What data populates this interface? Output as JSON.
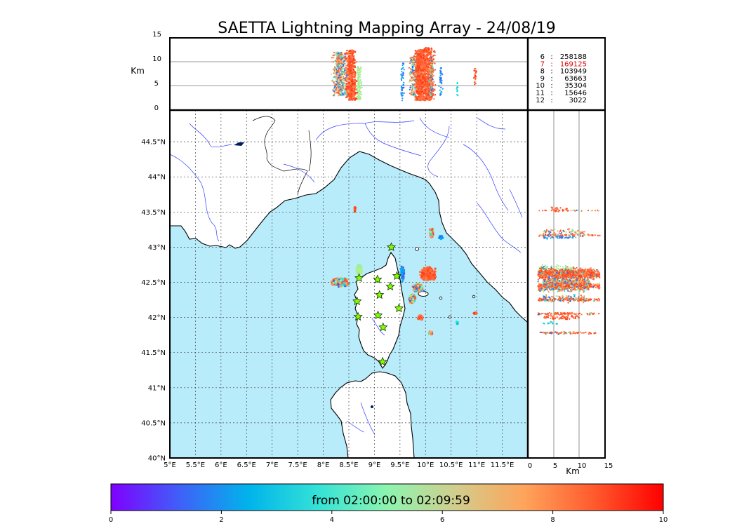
{
  "title": "SAETTA Lightning Mapping Array - 24/08/19",
  "colorbar": {
    "label": "from 02:00:00 to 02:09:59",
    "ticks": [
      "0",
      "2",
      "4",
      "6",
      "8",
      "10"
    ],
    "min": 0,
    "max": 10,
    "colors": [
      "#7f00ff",
      "#3f60f8",
      "#00b4eb",
      "#34e2d6",
      "#8cf5b0",
      "#d2cd8c",
      "#ffa35a",
      "#ff5a2d",
      "#ff0000"
    ]
  },
  "altitude_panel": {
    "ylabel": "Km",
    "yticks": [
      "15",
      "10",
      "5",
      "0"
    ],
    "ylim": [
      0,
      15
    ]
  },
  "side_panel": {
    "xlabel": "Km",
    "xticks": [
      "0",
      "5",
      "10",
      "15"
    ],
    "xlim": [
      0,
      15
    ]
  },
  "map": {
    "lon_range": [
      5,
      12
    ],
    "lat_range": [
      40,
      44.95
    ],
    "lon_ticks": [
      "5°E",
      "5.5°E",
      "6°E",
      "6.5°E",
      "7°E",
      "7.5°E",
      "8°E",
      "8.5°E",
      "9°E",
      "9.5°E",
      "10°E",
      "10.5°E",
      "11°E",
      "11.5°E"
    ],
    "lat_ticks": [
      "40°N",
      "40.5°N",
      "41°N",
      "41.5°N",
      "42°N",
      "42.5°N",
      "43°N",
      "43.5°N",
      "44°N",
      "44.5°N"
    ],
    "sea_color": "#b8ecfb",
    "stations": [
      {
        "lon": 9.33,
        "lat": 43.0
      },
      {
        "lon": 8.7,
        "lat": 42.56
      },
      {
        "lon": 9.06,
        "lat": 42.54
      },
      {
        "lon": 9.44,
        "lat": 42.59
      },
      {
        "lon": 9.31,
        "lat": 42.44
      },
      {
        "lon": 9.1,
        "lat": 42.32
      },
      {
        "lon": 8.66,
        "lat": 42.23
      },
      {
        "lon": 9.48,
        "lat": 42.13
      },
      {
        "lon": 8.68,
        "lat": 42.01
      },
      {
        "lon": 9.07,
        "lat": 42.03
      },
      {
        "lon": 9.17,
        "lat": 41.86
      },
      {
        "lon": 9.16,
        "lat": 41.37
      }
    ]
  },
  "legend": {
    "rows": [
      {
        "key": "6",
        "count": "258188",
        "color": "#000000"
      },
      {
        "key": "7",
        "count": "169125",
        "color": "#dd0000"
      },
      {
        "key": "8",
        "count": "103949",
        "color": "#000000"
      },
      {
        "key": "9",
        "count": "63663",
        "color": "#000000"
      },
      {
        "key": "10",
        "count": "35304",
        "color": "#000000"
      },
      {
        "key": "11",
        "count": "15646",
        "color": "#000000"
      },
      {
        "key": "12",
        "count": "3022",
        "color": "#000000"
      }
    ]
  }
}
